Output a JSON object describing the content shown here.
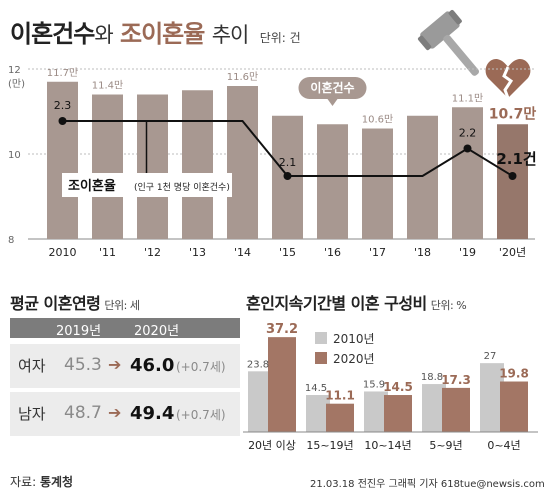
{
  "header": {
    "title_part1": "이혼건수",
    "title_part2": "와",
    "title_part3": "조이혼율",
    "title_part4": "추이",
    "unit": "단위: 건"
  },
  "chart_data": [
    {
      "type": "bar",
      "categories": [
        "2010",
        "'11",
        "'12",
        "'13",
        "'14",
        "'15",
        "'16",
        "'17",
        "'18",
        "'19",
        "'20년"
      ],
      "series": [
        {
          "name": "이혼건수",
          "values": [
            11.7,
            11.4,
            11.4,
            11.5,
            11.6,
            10.9,
            10.7,
            10.6,
            10.9,
            11.1,
            10.7
          ],
          "labels": [
            "11.7만",
            "11.4만",
            "",
            "",
            "11.6만",
            "",
            "",
            "10.6만",
            "",
            "11.1만",
            "10.7만"
          ]
        },
        {
          "name": "조이혼율",
          "type": "line",
          "values": [
            2.3,
            2.3,
            2.3,
            2.3,
            2.3,
            2.1,
            2.1,
            2.1,
            2.1,
            2.2,
            2.1
          ],
          "labels": [
            "2.3",
            "",
            "",
            "",
            "",
            "2.1",
            "",
            "",
            "",
            "2.2",
            "2.1건"
          ],
          "note": "(인구 1천 명당 이혼건수)"
        }
      ],
      "yticks": [
        "12",
        "(만)",
        "10",
        "8"
      ],
      "ylim": [
        8,
        12
      ],
      "grid": true
    },
    {
      "type": "bar",
      "title": "혼인지속기간별 이혼 구성비",
      "unit": "단위: %",
      "categories": [
        "20년 이상",
        "15~19년",
        "10~14년",
        "5~9년",
        "0~4년"
      ],
      "series": [
        {
          "name": "2010년",
          "values": [
            23.8,
            14.5,
            15.9,
            18.8,
            27
          ],
          "labels": [
            "23.8",
            "14.5",
            "15.9",
            "18.8",
            "27"
          ]
        },
        {
          "name": "2020년",
          "values": [
            37.2,
            11.1,
            14.5,
            17.3,
            19.8
          ],
          "labels": [
            "37.2",
            "11.1",
            "14.5",
            "17.3",
            "19.8"
          ]
        }
      ]
    },
    {
      "type": "table",
      "title": "평균 이혼연령",
      "unit": "단위: 세",
      "columns": [
        "2019년",
        "2020년"
      ],
      "rows": [
        {
          "label": "여자",
          "v2019": "45.3",
          "v2020": "46.0",
          "diff": "(+0.7세)"
        },
        {
          "label": "남자",
          "v2019": "48.7",
          "v2020": "49.4",
          "diff": "(+0.7세)"
        }
      ]
    }
  ],
  "footer": {
    "source_label": "자료:",
    "source_name": "통계청",
    "credit": "21.03.18 전진우 그래픽 기자 618tue@newsis.com"
  },
  "colors": {
    "bar_2010_main": "#a89891",
    "bar_2020_main": "#96776b",
    "bar_old": "#c9c9c9",
    "bar_new": "#a37665",
    "accent": "#9b6a56",
    "line": "#111111",
    "gavel": "#9a9a9a",
    "heart": "#9b6a56"
  },
  "icons": [
    "gavel-icon",
    "broken-heart-icon",
    "arrow-right-icon"
  ]
}
